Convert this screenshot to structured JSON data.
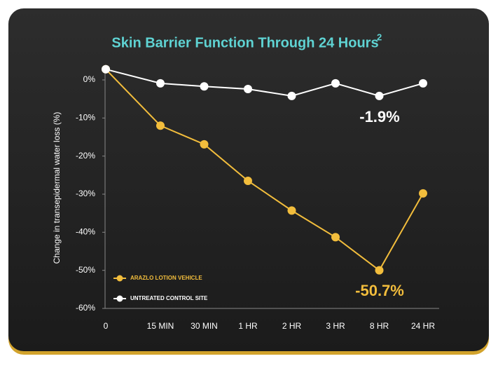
{
  "chart_data": {
    "type": "line",
    "title": "Skin Barrier Function Through 24 Hours",
    "title_superscript": "2",
    "y_label": "Change in transepidermal water loss  (%)",
    "categories": [
      "0",
      "15 MIN",
      "30 MIN",
      "1 HR",
      "2 HR",
      "3 HR",
      "8 HR",
      "24 HR"
    ],
    "series": [
      {
        "name": "ARAZLO LOTION VEHICLE",
        "color": "#f2bd3c",
        "values": [
          2.8,
          -12.0,
          -16.9,
          -26.5,
          -34.3,
          -41.3,
          -50.0,
          -29.8
        ]
      },
      {
        "name": "UNTREATED CONTROL SITE",
        "color": "#ffffff",
        "values": [
          2.8,
          -0.9,
          -1.7,
          -2.4,
          -4.2,
          -0.9,
          -4.2,
          -0.9
        ]
      }
    ],
    "annotations": [
      {
        "text": "-1.9%",
        "color": "#ffffff"
      },
      {
        "text": "-50.7%",
        "color": "#f2bd3c"
      }
    ],
    "ylim": [
      -60,
      3.5
    ],
    "yticks": [
      {
        "value": 0,
        "label": "0%"
      },
      {
        "value": -10,
        "label": "-10%"
      },
      {
        "value": -20,
        "label": "-20%"
      },
      {
        "value": -30,
        "label": "-30%"
      },
      {
        "value": -40,
        "label": "-40%"
      },
      {
        "value": -50,
        "label": "-50%"
      },
      {
        "value": -60,
        "label": "-60%"
      }
    ],
    "grid": false,
    "legend": "lower left"
  }
}
